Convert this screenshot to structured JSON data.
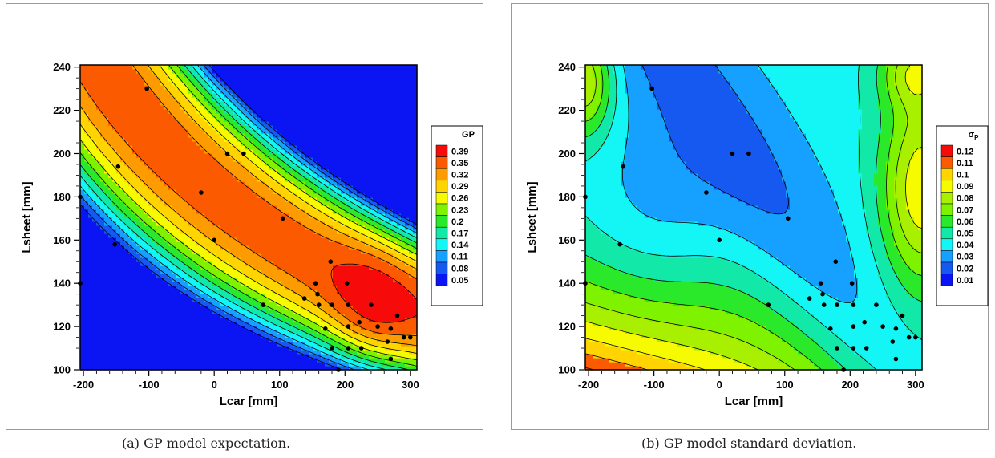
{
  "chart_data": [
    {
      "type": "contour",
      "xlabel": "Lcar [mm]",
      "ylabel": "Lsheet [mm]",
      "xlim": [
        -205,
        310
      ],
      "ylim": [
        100,
        241
      ],
      "xticks": [
        -200,
        -100,
        0,
        100,
        200,
        300
      ],
      "yticks": [
        100,
        120,
        140,
        160,
        180,
        200,
        220,
        240
      ],
      "legend_title": "GP",
      "legend_position": "right",
      "levels": [
        "0.05",
        "0.08",
        "0.11",
        "0.14",
        "0.17",
        "0.2",
        "0.23",
        "0.26",
        "0.29",
        "0.32",
        "0.35",
        "0.39"
      ],
      "colors": [
        "#0b14f3",
        "#1659f0",
        "#16a0ff",
        "#14f6f6",
        "#12e8a8",
        "#2ae82a",
        "#7ff200",
        "#f6fb00",
        "#ffd400",
        "#fd9b00",
        "#fb5a00",
        "#f70a0a"
      ],
      "samples": [
        [
          -205,
          140
        ],
        [
          -205,
          180
        ],
        [
          -152,
          158
        ],
        [
          -147,
          194
        ],
        [
          -103,
          230
        ],
        [
          -20,
          182
        ],
        [
          0,
          160
        ],
        [
          20,
          200
        ],
        [
          45,
          200
        ],
        [
          75,
          130
        ],
        [
          105,
          170
        ],
        [
          138,
          133
        ],
        [
          155,
          140
        ],
        [
          158,
          135
        ],
        [
          160,
          130
        ],
        [
          170,
          119
        ],
        [
          178,
          150
        ],
        [
          180,
          130
        ],
        [
          180,
          110
        ],
        [
          190,
          100
        ],
        [
          203,
          140
        ],
        [
          205,
          130
        ],
        [
          205,
          120
        ],
        [
          205,
          110
        ],
        [
          222,
          122
        ],
        [
          225,
          110
        ],
        [
          240,
          130
        ],
        [
          250,
          120
        ],
        [
          265,
          113
        ],
        [
          270,
          119
        ],
        [
          270,
          105
        ],
        [
          280,
          125
        ],
        [
          290,
          115
        ],
        [
          300,
          115
        ]
      ],
      "caption": "(a) GP model expectation."
    },
    {
      "type": "contour",
      "xlabel": "Lcar [mm]",
      "ylabel": "Lsheet [mm]",
      "xlim": [
        -205,
        310
      ],
      "ylim": [
        100,
        241
      ],
      "xticks": [
        -200,
        -100,
        0,
        100,
        200,
        300
      ],
      "yticks": [
        100,
        120,
        140,
        160,
        180,
        200,
        220,
        240
      ],
      "legend_title": "σ",
      "legend_title_sub": "P",
      "legend_position": "right",
      "levels": [
        "0.01",
        "0.02",
        "0.03",
        "0.04",
        "0.05",
        "0.06",
        "0.07",
        "0.08",
        "0.09",
        "0.1",
        "0.11",
        "0.12"
      ],
      "colors": [
        "#0b14f3",
        "#1659f0",
        "#16a0ff",
        "#14f6f6",
        "#12e8a8",
        "#2ae82a",
        "#7ff200",
        "#a8f000",
        "#f6fb00",
        "#ffd400",
        "#fb5a00",
        "#f70a0a"
      ],
      "samples": [
        [
          -205,
          140
        ],
        [
          -205,
          180
        ],
        [
          -152,
          158
        ],
        [
          -147,
          194
        ],
        [
          -103,
          230
        ],
        [
          -20,
          182
        ],
        [
          0,
          160
        ],
        [
          20,
          200
        ],
        [
          45,
          200
        ],
        [
          75,
          130
        ],
        [
          105,
          170
        ],
        [
          138,
          133
        ],
        [
          155,
          140
        ],
        [
          158,
          135
        ],
        [
          160,
          130
        ],
        [
          170,
          119
        ],
        [
          178,
          150
        ],
        [
          180,
          130
        ],
        [
          180,
          110
        ],
        [
          190,
          100
        ],
        [
          203,
          140
        ],
        [
          205,
          130
        ],
        [
          205,
          120
        ],
        [
          205,
          110
        ],
        [
          222,
          122
        ],
        [
          225,
          110
        ],
        [
          240,
          130
        ],
        [
          250,
          120
        ],
        [
          265,
          113
        ],
        [
          270,
          119
        ],
        [
          270,
          105
        ],
        [
          280,
          125
        ],
        [
          290,
          115
        ],
        [
          300,
          115
        ]
      ],
      "caption": "(b) GP model standard deviation."
    }
  ]
}
